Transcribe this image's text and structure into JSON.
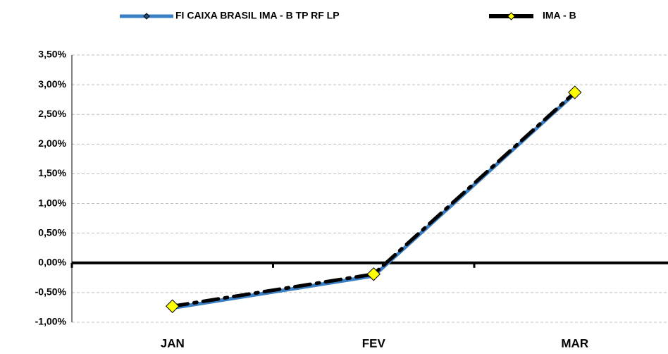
{
  "chart_data": {
    "type": "line",
    "categories": [
      "JAN",
      "FEV",
      "MAR"
    ],
    "series": [
      {
        "name": "FI CAIXA BRASIL IMA - B TP RF LP",
        "color": "#3a7fc4",
        "values": [
          -0.76,
          -0.22,
          2.85
        ]
      },
      {
        "name": "IMA - B",
        "color": "#000000",
        "marker_color": "#ffff00",
        "values": [
          -0.73,
          -0.19,
          2.87
        ]
      }
    ],
    "ylim": [
      -1.0,
      3.5
    ],
    "yticks": [
      {
        "value": -1.0,
        "label": "-1,00%"
      },
      {
        "value": -0.5,
        "label": "-0,50%"
      },
      {
        "value": 0,
        "label": "0,00%"
      },
      {
        "value": 0.5,
        "label": "0,50%"
      },
      {
        "value": 1.0,
        "label": "1,00%"
      },
      {
        "value": 1.5,
        "label": "1,50%"
      },
      {
        "value": 2.0,
        "label": "2,00%"
      },
      {
        "value": 2.5,
        "label": "2,50%"
      },
      {
        "value": 3.0,
        "label": "3,00%"
      },
      {
        "value": 3.5,
        "label": "3,50%"
      }
    ],
    "grid": true,
    "legend": "top"
  }
}
